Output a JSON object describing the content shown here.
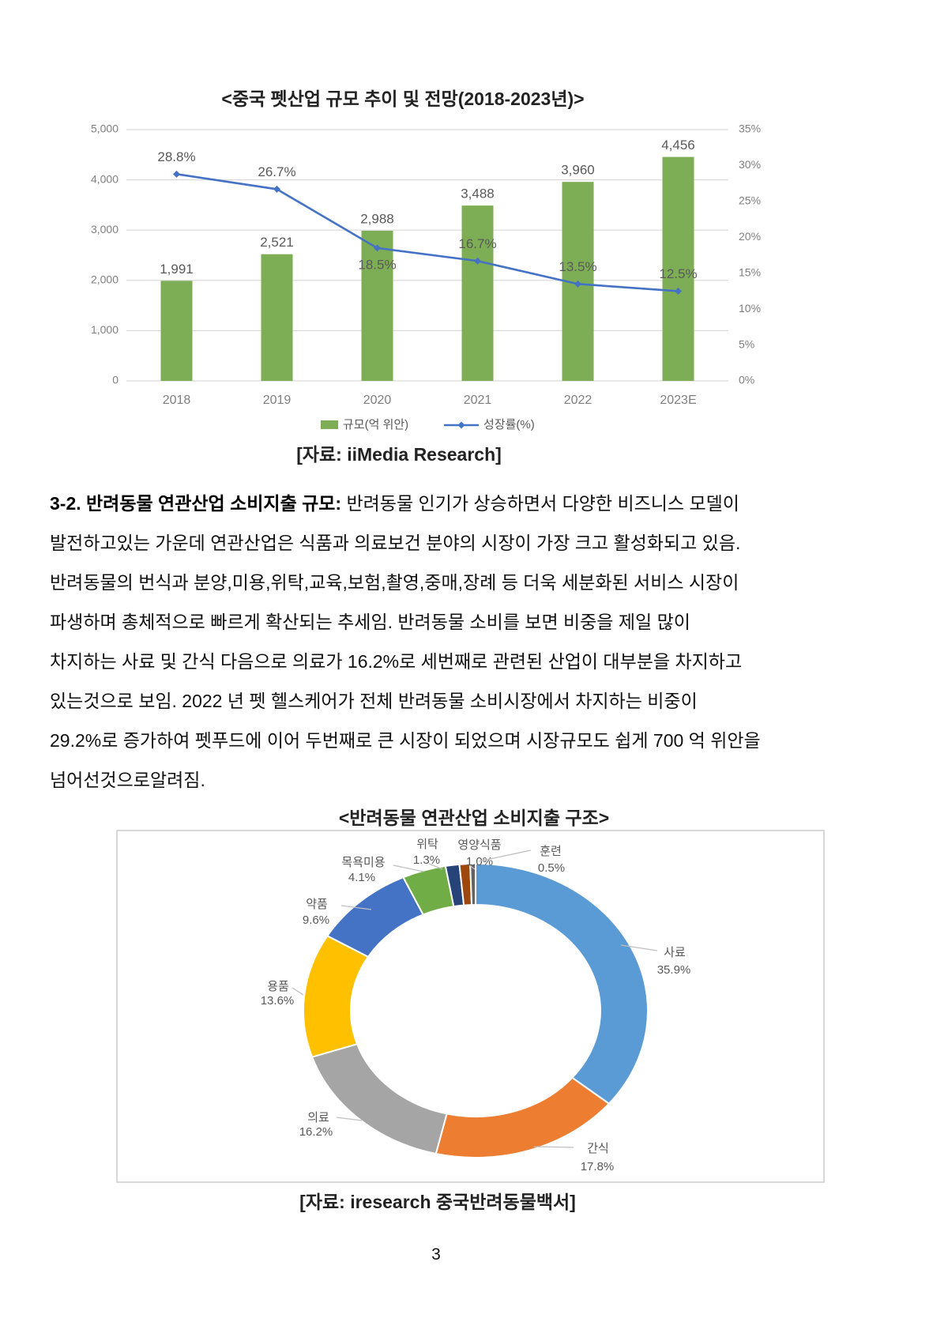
{
  "page": {
    "number": "3"
  },
  "charts": [
    {
      "title": "<중국 펫산업 규모 추이 및 전망(2018-2023년)>",
      "source": "[자료:  iiMedia Research]",
      "chart_data": {
        "type": "bar+line",
        "categories": [
          "2018",
          "2019",
          "2020",
          "2021",
          "2022",
          "2023E"
        ],
        "series": [
          {
            "name": "규모(억 위안)",
            "type": "bar",
            "axis": "left",
            "color": "#7dae56",
            "values": [
              1991,
              2521,
              2988,
              3488,
              3960,
              4456
            ]
          },
          {
            "name": "성장률(%)",
            "type": "line",
            "axis": "right",
            "color": "#4472c4",
            "values": [
              28.8,
              26.7,
              18.5,
              16.7,
              13.5,
              12.5
            ]
          }
        ],
        "left_axis": {
          "min": 0,
          "max": 5000,
          "step": 1000,
          "ticks": [
            "5,000",
            "4,000",
            "3,000",
            "2,000",
            "1,000",
            "0"
          ]
        },
        "right_axis": {
          "min": 0,
          "max": 35,
          "step": 5,
          "ticks": [
            "35%",
            "30%",
            "25%",
            "20%",
            "15%",
            "10%",
            "5%",
            "0%"
          ]
        },
        "grid": true,
        "legend_position": "bottom"
      }
    },
    {
      "title": "<반려동물 연관산업 소비지출 구조>",
      "source": "[자료: iresearch 중국반려동물백서]",
      "chart_data": {
        "type": "pie",
        "subtype": "donut",
        "direction": "clockwise",
        "start_angle_deg": 0,
        "slices": [
          {
            "label": "사료",
            "value": 35.9,
            "color": "#5b9bd5"
          },
          {
            "label": "간식",
            "value": 17.8,
            "color": "#ed7d31"
          },
          {
            "label": "의료",
            "value": 16.2,
            "color": "#a5a5a5"
          },
          {
            "label": "용품",
            "value": 13.6,
            "color": "#ffc000"
          },
          {
            "label": "약품",
            "value": 9.6,
            "color": "#4472c4"
          },
          {
            "label": "목욕미용",
            "value": 4.1,
            "color": "#70ad47"
          },
          {
            "label": "위탁",
            "value": 1.3,
            "color": "#264478"
          },
          {
            "label": "영양식품",
            "value": 1.0,
            "color": "#9e480e"
          },
          {
            "label": "훈련",
            "value": 0.5,
            "color": "#636363"
          }
        ]
      }
    }
  ],
  "paragraph": {
    "heading_bold": "3-2. 반려동물 연관산업 소비지출 규모:",
    "line1_rest": " 반려동물 인기가 상승하면서 다양한 비즈니스 모델이",
    "lines": [
      "발전하고있는 가운데 연관산업은 식품과 의료보건 분야의 시장이 가장 크고 활성화되고 있음.",
      "반려동물의 번식과 분양,미용,위탁,교육,보험,촬영,중매,장례 등 더욱 세분화된 서비스 시장이",
      "파생하며 총체적으로 빠르게 확산되는 추세임. 반려동물 소비를 보면 비중을 제일 많이",
      "차지하는 사료 및 간식 다음으로 의료가 16.2%로 세번째로 관련된 산업이 대부분을 차지하고",
      "있는것으로 보임. 2022 년 펫 헬스케어가 전체 반려동물 소비시장에서 차지하는 비중이",
      "29.2%로 증가하여 펫푸드에 이어 두번째로 큰 시장이 되었으며 시장규모도 쉽게 700 억 위안을",
      "넘어선것으로알려짐."
    ]
  }
}
